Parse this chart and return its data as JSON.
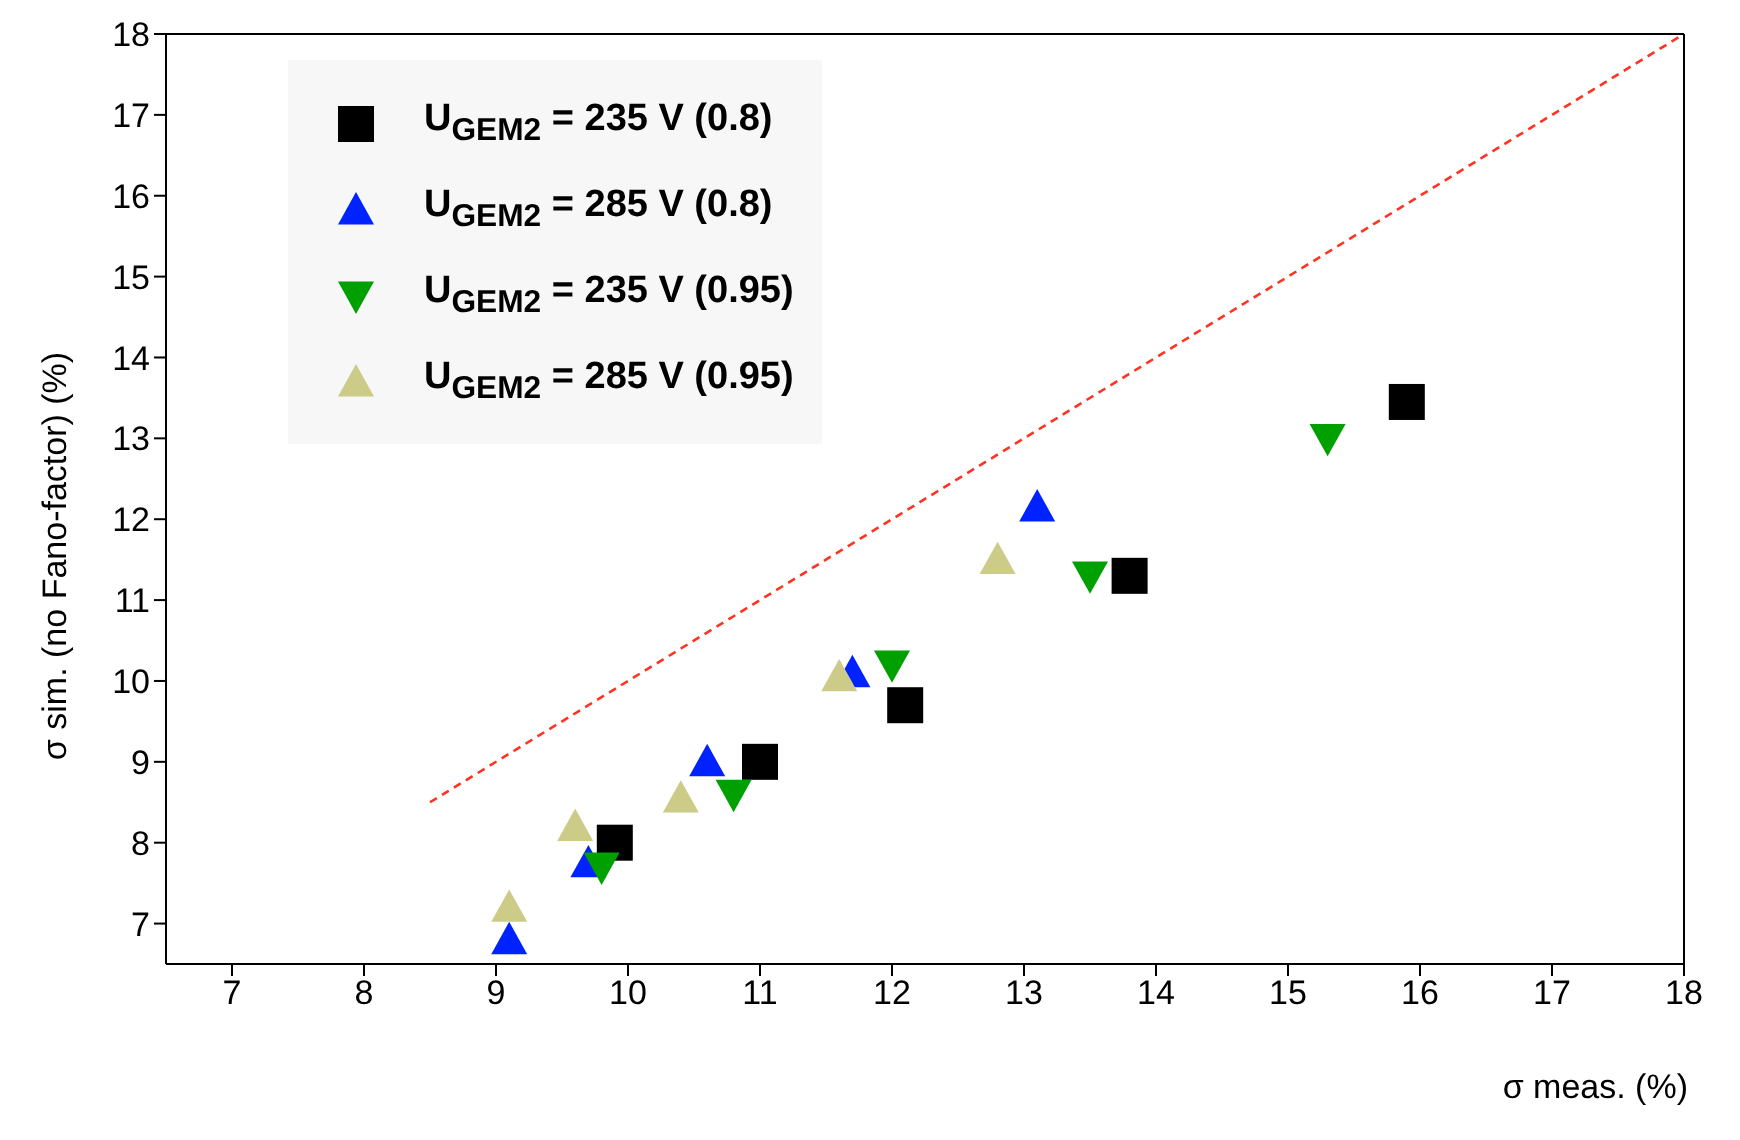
{
  "chart_data": {
    "type": "scatter",
    "xlabel": "σ meas. (%)",
    "ylabel": "σ sim. (no Fano-factor) (%)",
    "xlim": [
      6.5,
      18
    ],
    "ylim": [
      6.5,
      18
    ],
    "xticks": [
      7,
      8,
      9,
      10,
      11,
      12,
      13,
      14,
      15,
      16,
      17,
      18
    ],
    "yticks": [
      7,
      8,
      9,
      10,
      11,
      12,
      13,
      14,
      15,
      16,
      17,
      18
    ],
    "legend": "top left",
    "series": [
      {
        "name": "U$_{GEM2}$ = 235 V (0.8)",
        "color": "#000000",
        "marker": "square",
        "x": [
          9.9,
          11.0,
          12.1,
          13.8,
          15.9
        ],
        "values": [
          8.0,
          9.0,
          9.7,
          11.3,
          13.45
        ]
      },
      {
        "name": "U$_{GEM2}$ = 285 V (0.8)",
        "color": "#0022ff",
        "marker": "triangle",
        "x": [
          9.1,
          9.7,
          10.6,
          11.7,
          13.1
        ],
        "values": [
          6.8,
          7.75,
          9.0,
          10.1,
          12.15
        ]
      },
      {
        "name": "U$_{GEM2}$ = 235 V (0.95)",
        "color": "#00a000",
        "marker": "triangle-down",
        "x": [
          9.8,
          10.8,
          12.0,
          13.5,
          15.3
        ],
        "values": [
          7.7,
          8.6,
          10.2,
          11.3,
          13.0
        ]
      },
      {
        "name": "U$_{GEM2}$ = 285 V (0.95)",
        "color": "#cccc88",
        "marker": "triangle",
        "x": [
          9.1,
          9.6,
          10.4,
          11.6,
          12.8
        ],
        "values": [
          7.2,
          8.2,
          8.55,
          10.05,
          11.5
        ]
      },
      {
        "type": "line",
        "color": "#ff3322",
        "marker": "none",
        "line_style": "dashed",
        "x": [
          8.5,
          18
        ],
        "values": [
          8.5,
          18
        ]
      }
    ]
  }
}
